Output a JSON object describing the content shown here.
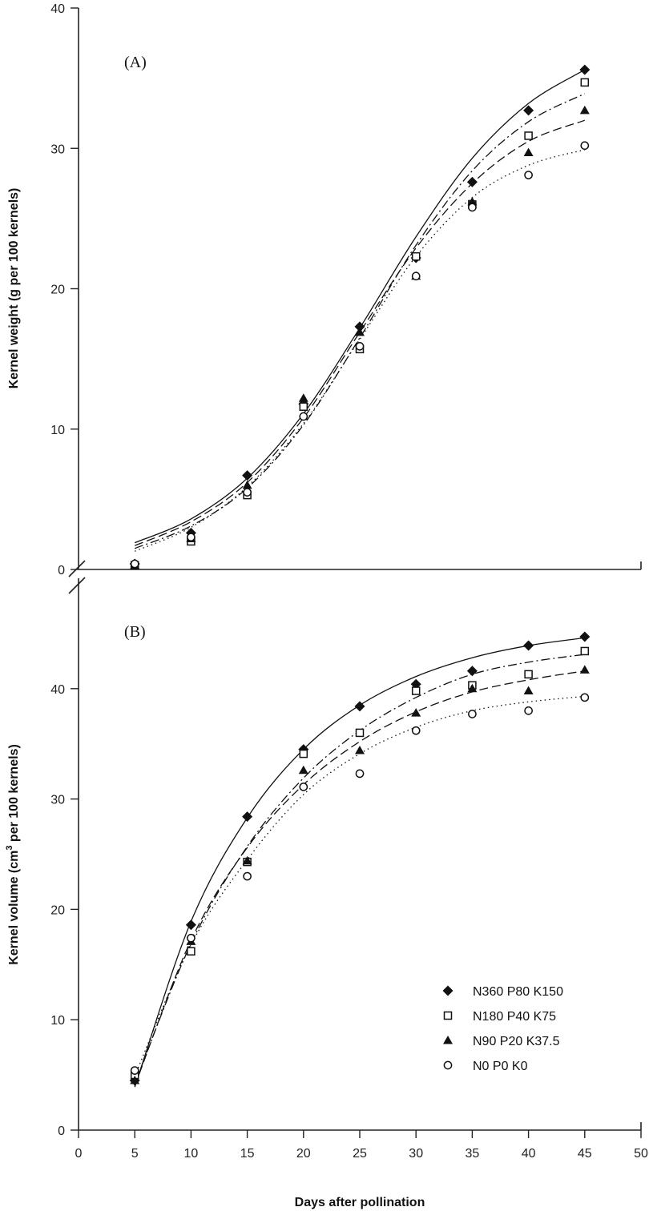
{
  "chart_data": [
    {
      "panel_label": "(A)",
      "type": "scatter",
      "ylabel": "Kernel weight (g per 100 kernels)",
      "xlim": [
        0,
        50
      ],
      "ylim": [
        0,
        40
      ],
      "yticks": [
        0,
        10,
        20,
        30,
        40
      ],
      "x": [
        5,
        10,
        15,
        20,
        25,
        30,
        35,
        40,
        45
      ],
      "series": [
        {
          "name": "N360 P80 K150",
          "marker": "diamond",
          "line": "solid",
          "values": [
            0.4,
            2.6,
            6.7,
            11.8,
            17.3,
            22.2,
            27.6,
            32.7,
            35.6
          ],
          "fit": [
            1.9,
            3.6,
            6.5,
            11.1,
            17.2,
            23.7,
            29.3,
            33.2,
            35.6
          ]
        },
        {
          "name": "N180 P40 K75",
          "marker": "square",
          "line": "dash-dot",
          "values": [
            0.3,
            2.0,
            5.3,
            11.6,
            15.7,
            22.3,
            26.0,
            30.9,
            34.7
          ],
          "fit": [
            1.5,
            3.1,
            5.8,
            10.3,
            16.5,
            23.1,
            28.4,
            31.9,
            33.9
          ]
        },
        {
          "name": "N90 P20 K37.5",
          "marker": "triangle",
          "line": "dash",
          "values": [
            0.3,
            2.2,
            6.0,
            12.2,
            16.9,
            20.9,
            26.2,
            29.7,
            32.7
          ],
          "fit": [
            1.7,
            3.4,
            6.2,
            10.8,
            16.9,
            22.9,
            27.5,
            30.5,
            32.0
          ]
        },
        {
          "name": "N0 P0 K0",
          "marker": "circle",
          "line": "dotted",
          "values": [
            0.4,
            2.3,
            5.5,
            10.9,
            15.9,
            20.9,
            25.8,
            28.1,
            30.2
          ],
          "fit": [
            1.3,
            3.0,
            5.9,
            10.4,
            16.4,
            22.3,
            26.5,
            28.8,
            29.9
          ]
        }
      ]
    },
    {
      "panel_label": "(B)",
      "type": "scatter",
      "ylabel": "Kernel volume (cm",
      "ylabel_sup": "3",
      "ylabel_tail": " per 100 kernels)",
      "xlabel": "Days after pollination",
      "xlim": [
        0,
        50
      ],
      "ylim": [
        0,
        50
      ],
      "xticks": [
        0,
        5,
        10,
        15,
        20,
        25,
        30,
        35,
        40,
        45,
        50
      ],
      "yticks": [
        0,
        10,
        20,
        30,
        40
      ],
      "x": [
        5,
        10,
        15,
        20,
        25,
        30,
        35,
        40,
        45
      ],
      "legend": {
        "position": "bottom-right"
      },
      "series": [
        {
          "name": "N360 P80 K150",
          "marker": "diamond",
          "line": "solid",
          "values": [
            4.5,
            18.6,
            28.4,
            34.5,
            38.4,
            40.4,
            41.6,
            43.9,
            44.7
          ],
          "fit": [
            3.9,
            18.9,
            28.3,
            34.5,
            38.5,
            41.1,
            42.8,
            43.9,
            44.6
          ]
        },
        {
          "name": "N180 P40 K75",
          "marker": "square",
          "line": "dash-dot",
          "values": [
            5.0,
            16.2,
            24.3,
            34.1,
            36.0,
            39.8,
            40.3,
            41.3,
            43.4
          ],
          "fit": [
            4.2,
            16.9,
            25.7,
            31.9,
            36.2,
            39.2,
            41.3,
            42.4,
            43.1
          ]
        },
        {
          "name": "N90 P20 K37.5",
          "marker": "triangle",
          "line": "dash",
          "values": [
            4.5,
            17.1,
            24.4,
            32.6,
            34.4,
            37.8,
            40.0,
            39.8,
            41.7
          ],
          "fit": [
            4.0,
            17.2,
            25.6,
            31.3,
            35.2,
            37.9,
            39.7,
            40.8,
            41.6
          ]
        },
        {
          "name": "N0 P0 K0",
          "marker": "circle",
          "line": "dotted",
          "values": [
            5.4,
            17.4,
            23.0,
            31.1,
            32.3,
            36.2,
            37.7,
            38.0,
            39.2
          ],
          "fit": [
            4.9,
            16.8,
            24.5,
            30.4,
            34.1,
            36.5,
            38.0,
            38.8,
            39.3
          ]
        }
      ]
    }
  ]
}
